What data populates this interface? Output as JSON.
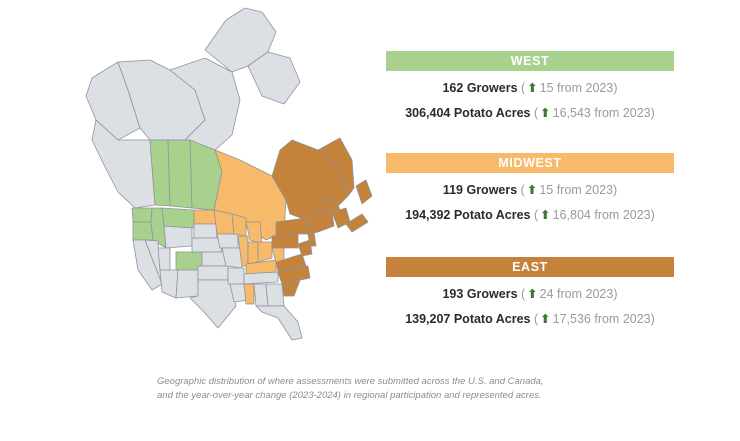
{
  "colors": {
    "west": "#a9d18e",
    "midwest": "#f7b96a",
    "east": "#c4823a",
    "base": "#dcdfe3",
    "border": "#8e959c",
    "arrow": "#3f7a34"
  },
  "icons": {
    "increase": "up-arrow-icon"
  },
  "regions": [
    {
      "key": "west",
      "title": "WEST",
      "growers": {
        "count": "162 Growers",
        "paren_open": "(",
        "arrow": "⬆",
        "change": "15 from 2023",
        "paren_close": ")"
      },
      "acres": {
        "count": "306,404 Potato Acres",
        "paren_open": "(",
        "arrow": "⬆",
        "change": "16,543 from 2023",
        "paren_close": ")"
      }
    },
    {
      "key": "midwest",
      "title": "MIDWEST",
      "growers": {
        "count": "119 Growers",
        "paren_open": "(",
        "arrow": "⬆",
        "change": "15 from 2023",
        "paren_close": ")"
      },
      "acres": {
        "count": "194,392 Potato Acres",
        "paren_open": "(",
        "arrow": "⬆",
        "change": "16,804 from 2023",
        "paren_close": ")"
      }
    },
    {
      "key": "east",
      "title": "EAST",
      "growers": {
        "count": "193 Growers",
        "paren_open": "(",
        "arrow": "⬆",
        "change": "24 from 2023",
        "paren_close": ")"
      },
      "acres": {
        "count": "139,207 Potato Acres",
        "paren_open": "(",
        "arrow": "⬆",
        "change": "17,536 from 2023",
        "paren_close": ")"
      }
    }
  ],
  "caption": "Geographic distribution of where assessments were submitted across the U.S. and Canada, and the year-over-year change (2023-2024) in regional participation and represented acres."
}
